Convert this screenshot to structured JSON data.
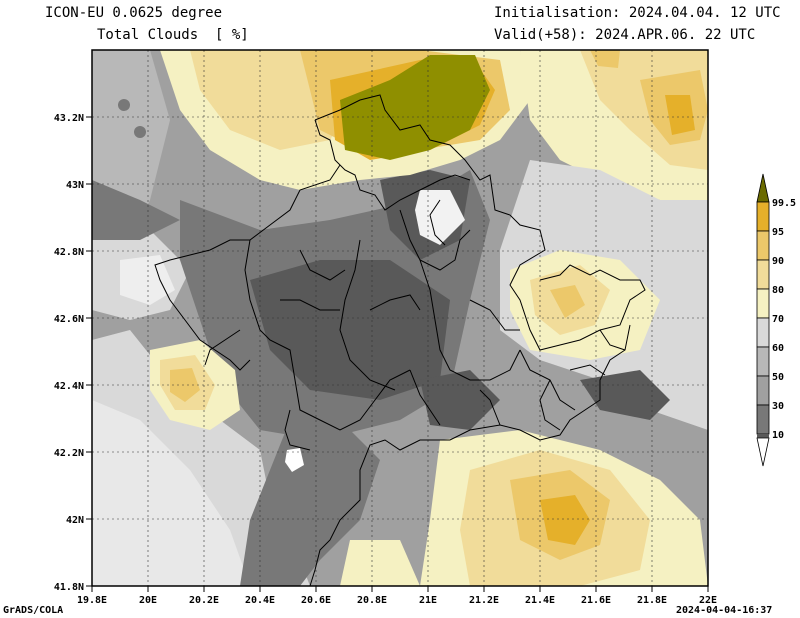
{
  "header": {
    "model": "ICON-EU 0.0625 degree",
    "variable": "Total Clouds  [ %]",
    "init": "Initialisation: 2024.04.04. 12 UTC",
    "valid": "Valid(+58): 2024.APR.06. 22 UTC"
  },
  "axes": {
    "x_ticks": [
      "19.8E",
      "20E",
      "20.2E",
      "20.4E",
      "20.6E",
      "20.8E",
      "21E",
      "21.2E",
      "21.4E",
      "21.6E",
      "21.8E",
      "22E"
    ],
    "y_ticks": [
      "43.2N",
      "43N",
      "42.8N",
      "42.6N",
      "42.4N",
      "42.2N",
      "42N",
      "41.8N"
    ]
  },
  "colorbar": {
    "levels": [
      "99.5",
      "95",
      "90",
      "80",
      "70",
      "60",
      "50",
      "30",
      "10"
    ],
    "colors": [
      "#6b6b00",
      "#e5b02a",
      "#ecc86a",
      "#f1dc9a",
      "#f5f1c2",
      "#d9d9d9",
      "#b8b8b8",
      "#a0a0a0",
      "#787878",
      "#595959",
      "#ffffff"
    ]
  },
  "footer": {
    "left": "GrADS/COLA",
    "right": "2024-04-04-16:37"
  }
}
